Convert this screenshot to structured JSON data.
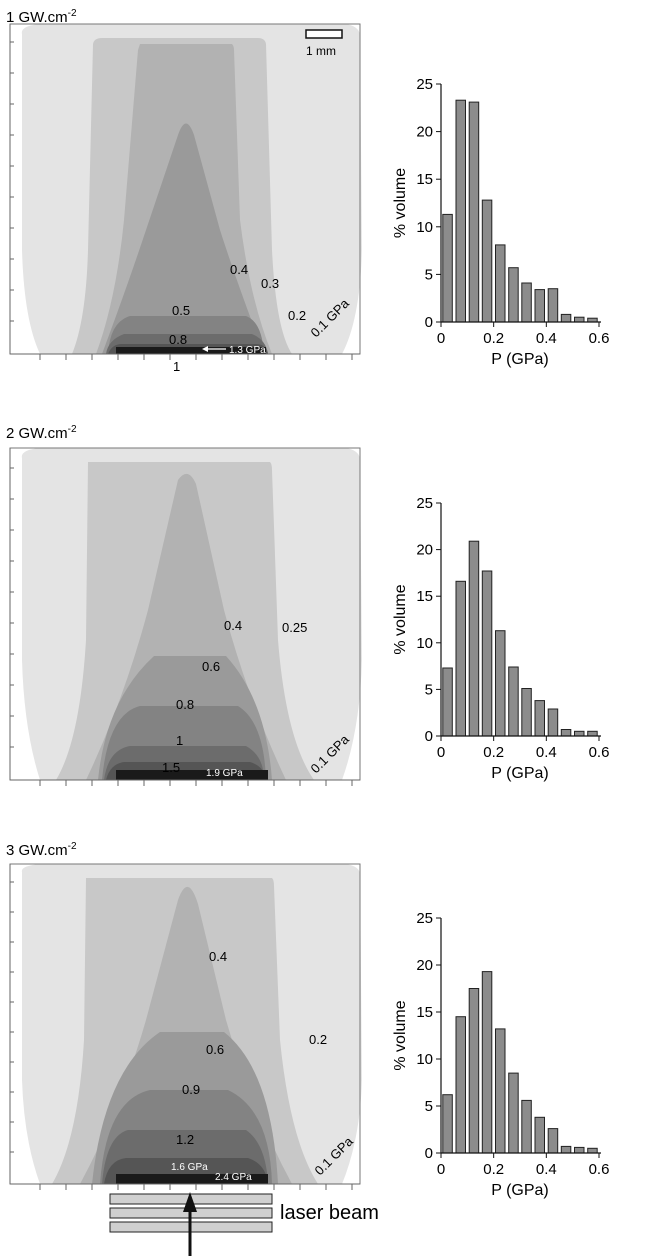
{
  "panels": [
    {
      "title": "1 GW.cm",
      "title_sup": "-2",
      "contour_labels": [
        "0.4",
        "0.3",
        "0.2",
        "0.5",
        "0.8",
        "1",
        "0.1 GPa"
      ],
      "peak_label": "1.3 GPa",
      "scale_label": "1 mm"
    },
    {
      "title": "2 GW.cm",
      "title_sup": "-2",
      "contour_labels": [
        "0.4",
        "0.25",
        "0.6",
        "0.8",
        "1",
        "1.5",
        "0.1 GPa"
      ],
      "peak_label": "1.9 GPa"
    },
    {
      "title": "3 GW.cm",
      "title_sup": "-2",
      "contour_labels": [
        "0.4",
        "0.2",
        "0.6",
        "0.9",
        "1.2",
        "0.1 GPa"
      ],
      "peak_label": "1.6 GPa",
      "peak_label_2": "2.4 GPa"
    }
  ],
  "laser_label": "laser beam",
  "colors": {
    "bar_fill": "#8c8c8c",
    "bar_stroke": "#222222",
    "contour_levels": [
      "#e4e4e4",
      "#c8c8c8",
      "#b2b2b2",
      "#9a9a9a",
      "#838383",
      "#6c6c6c",
      "#555555",
      "#1a1a1a"
    ]
  },
  "chart_data": [
    {
      "type": "bar",
      "xlabel": "P (GPa)",
      "ylabel": "% volume",
      "xlim": [
        0,
        0.6
      ],
      "ylim": [
        0,
        25
      ],
      "xticks": [
        "0",
        "0.2",
        "0.4",
        "0.6"
      ],
      "yticks": [
        "0",
        "5",
        "10",
        "15",
        "20",
        "25"
      ],
      "x": [
        0.025,
        0.075,
        0.125,
        0.175,
        0.225,
        0.275,
        0.325,
        0.375,
        0.425,
        0.475,
        0.525,
        0.575
      ],
      "values": [
        11.3,
        23.3,
        23.1,
        12.8,
        8.1,
        5.7,
        4.1,
        3.4,
        3.5,
        0.8,
        0.5,
        0.4
      ]
    },
    {
      "type": "bar",
      "xlabel": "P (GPa)",
      "ylabel": "% volume",
      "xlim": [
        0,
        0.6
      ],
      "ylim": [
        0,
        25
      ],
      "xticks": [
        "0",
        "0.2",
        "0.4",
        "0.6"
      ],
      "yticks": [
        "0",
        "5",
        "10",
        "15",
        "20",
        "25"
      ],
      "x": [
        0.025,
        0.075,
        0.125,
        0.175,
        0.225,
        0.275,
        0.325,
        0.375,
        0.425,
        0.475,
        0.525,
        0.575
      ],
      "values": [
        7.3,
        16.6,
        20.9,
        17.7,
        11.3,
        7.4,
        5.1,
        3.8,
        2.9,
        0.7,
        0.5,
        0.5
      ]
    },
    {
      "type": "bar",
      "xlabel": "P (GPa)",
      "ylabel": "% volume",
      "xlim": [
        0,
        0.6
      ],
      "ylim": [
        0,
        25
      ],
      "xticks": [
        "0",
        "0.2",
        "0.4",
        "0.6"
      ],
      "yticks": [
        "0",
        "5",
        "10",
        "15",
        "20",
        "25"
      ],
      "x": [
        0.025,
        0.075,
        0.125,
        0.175,
        0.225,
        0.275,
        0.325,
        0.375,
        0.425,
        0.475,
        0.525,
        0.575
      ],
      "values": [
        6.2,
        14.5,
        17.5,
        19.3,
        13.2,
        8.5,
        5.6,
        3.8,
        2.6,
        0.7,
        0.6,
        0.5
      ]
    }
  ]
}
